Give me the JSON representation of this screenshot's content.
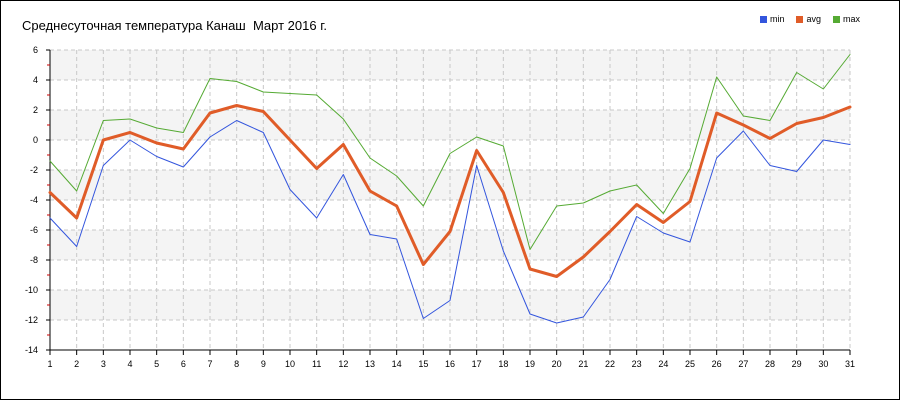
{
  "chart_data": {
    "type": "line",
    "title": "Среднесуточная температура Канаш  Март 2016 г.",
    "xlabel": "",
    "ylabel": "",
    "x": [
      1,
      2,
      3,
      4,
      5,
      6,
      7,
      8,
      9,
      10,
      11,
      12,
      13,
      14,
      15,
      16,
      17,
      18,
      19,
      20,
      21,
      22,
      23,
      24,
      25,
      26,
      27,
      28,
      29,
      30,
      31
    ],
    "x_tick_labels": [
      "1",
      "2",
      "3",
      "4",
      "5",
      "6",
      "7",
      "8",
      "9",
      "10",
      "11",
      "12",
      "13",
      "14",
      "15",
      "16",
      "17",
      "18",
      "19",
      "20",
      "21",
      "22",
      "23",
      "24",
      "25",
      "26",
      "27",
      "28",
      "29",
      "30",
      "31"
    ],
    "ylim": [
      -14,
      6
    ],
    "y_ticks": [
      6,
      4,
      2,
      0,
      -2,
      -4,
      -6,
      -8,
      -10,
      -12,
      -14
    ],
    "y_tick_labels": [
      "6",
      "4",
      "2",
      "0",
      "-2",
      "-4",
      "-6",
      "-8",
      "-10",
      "-12",
      "-14"
    ],
    "grid": true,
    "legend_position": "top-right",
    "series": [
      {
        "name": "min",
        "color": "#3355dd",
        "values": [
          -5.2,
          -7.1,
          -1.7,
          0.0,
          -1.1,
          -1.8,
          0.2,
          1.3,
          0.5,
          -3.3,
          -5.2,
          -2.3,
          -6.3,
          -6.6,
          -11.9,
          -10.7,
          -1.7,
          -7.4,
          -11.6,
          -12.2,
          -11.8,
          -9.3,
          -5.1,
          -6.2,
          -6.8,
          -1.2,
          0.6,
          -1.7,
          -2.1,
          0.0,
          -0.3
        ]
      },
      {
        "name": "avg",
        "color": "#e05c28",
        "values": [
          -3.5,
          -5.2,
          0.0,
          0.5,
          -0.2,
          -0.6,
          1.8,
          2.3,
          1.9,
          0.0,
          -1.9,
          -0.3,
          -3.4,
          -4.4,
          -8.3,
          -6.1,
          -0.7,
          -3.5,
          -8.6,
          -9.1,
          -7.8,
          -6.1,
          -4.3,
          -5.5,
          -4.1,
          1.8,
          1.0,
          0.1,
          1.1,
          1.5,
          2.2
        ]
      },
      {
        "name": "max",
        "color": "#55aa33",
        "values": [
          -1.4,
          -3.4,
          1.3,
          1.4,
          0.8,
          0.5,
          4.1,
          3.9,
          3.2,
          3.1,
          3.0,
          1.4,
          -1.2,
          -2.4,
          -4.4,
          -0.9,
          0.2,
          -0.4,
          -7.3,
          -4.4,
          -4.2,
          -3.4,
          -3.0,
          -4.9,
          -1.9,
          4.2,
          1.6,
          1.3,
          4.5,
          3.4,
          5.7
        ]
      }
    ]
  }
}
